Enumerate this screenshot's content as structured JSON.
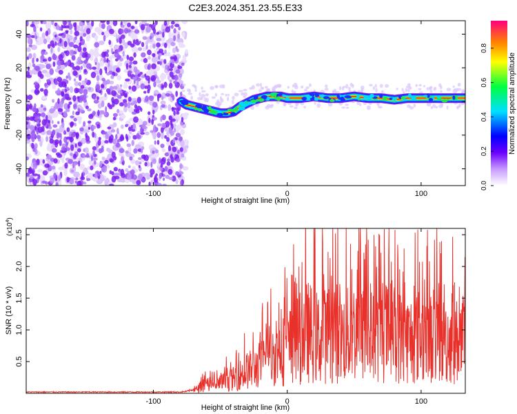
{
  "title": "C2E3.2024.351.23.55.E33",
  "colorbar": {
    "label": "Normalized spectral amplitude",
    "ticks": [
      "0.0",
      "0.2",
      "0.4",
      "0.6",
      "0.8"
    ],
    "tick_values": [
      0.0,
      0.2,
      0.4,
      0.6,
      0.8
    ],
    "range": [
      0,
      0.96
    ]
  },
  "chart_data": [
    {
      "type": "heatmap",
      "xlabel": "Height of straight line (km)",
      "ylabel": "Frequency (Hz)",
      "xlim": [
        -195,
        133
      ],
      "ylim": [
        -50,
        48
      ],
      "x_ticks": [
        -100,
        0,
        100
      ],
      "x_tick_labels": [
        "-100",
        "0",
        "100"
      ],
      "y_ticks": [
        -40,
        -20,
        0,
        20,
        40
      ],
      "y_tick_labels": [
        "-40",
        "-20",
        "0",
        "20",
        "40"
      ],
      "noise_region_x": [
        -195,
        -78
      ],
      "signal_track": {
        "x": [
          -79,
          -75,
          -70,
          -65,
          -60,
          -55,
          -50,
          -45,
          -40,
          -35,
          -30,
          -25,
          -20,
          -15,
          -10,
          -5,
          0,
          10,
          20,
          30,
          40,
          50,
          60,
          70,
          80,
          90,
          100,
          110,
          120,
          133
        ],
        "y": [
          0,
          -2,
          -3,
          -4,
          -5,
          -6,
          -7,
          -7,
          -6,
          -3,
          -1,
          1,
          2,
          3,
          3,
          3,
          2,
          2,
          3,
          2,
          2,
          3,
          2,
          2,
          1,
          2,
          2,
          2,
          2,
          2
        ]
      }
    },
    {
      "type": "line",
      "xlabel": "Height of straight line (km)",
      "ylabel": "SNR (10 * v/v)",
      "y_multiplier_label": "(x10",
      "y_multiplier_exp": "4",
      "xlim": [
        -195,
        133
      ],
      "ylim": [
        0,
        2.6
      ],
      "x_ticks": [
        -100,
        0,
        100
      ],
      "x_tick_labels": [
        "-100",
        "0",
        "100"
      ],
      "y_ticks": [
        0.5,
        1.0,
        1.5,
        2.0,
        2.5
      ],
      "y_tick_labels": [
        "0.5",
        "1.0",
        "1.5",
        "2.0",
        "2.5"
      ],
      "series": [
        {
          "color": "#e8312b",
          "x": [
            -195,
            -80,
            -75,
            -70,
            -65,
            -60,
            -55,
            -50,
            -45,
            -40,
            -35,
            -30,
            -25,
            -20,
            -15,
            -10,
            -5,
            0,
            5,
            10,
            15,
            20,
            25,
            30,
            35,
            40,
            45,
            50,
            55,
            60,
            65,
            70,
            75,
            80,
            85,
            90,
            95,
            100,
            105,
            110,
            115,
            120,
            125,
            133
          ],
          "y": [
            0.02,
            0.02,
            0.03,
            0.06,
            0.15,
            0.2,
            0.18,
            0.25,
            0.3,
            0.35,
            0.45,
            0.55,
            0.6,
            0.7,
            0.8,
            0.9,
            1.0,
            1.1,
            1.2,
            1.35,
            1.5,
            1.4,
            1.3,
            1.45,
            1.55,
            1.35,
            1.4,
            1.5,
            1.45,
            1.4,
            1.35,
            1.4,
            1.5,
            1.45,
            1.35,
            1.3,
            1.35,
            1.4,
            1.3,
            1.35,
            1.25,
            1.3,
            1.25,
            1.3
          ]
        }
      ]
    }
  ]
}
